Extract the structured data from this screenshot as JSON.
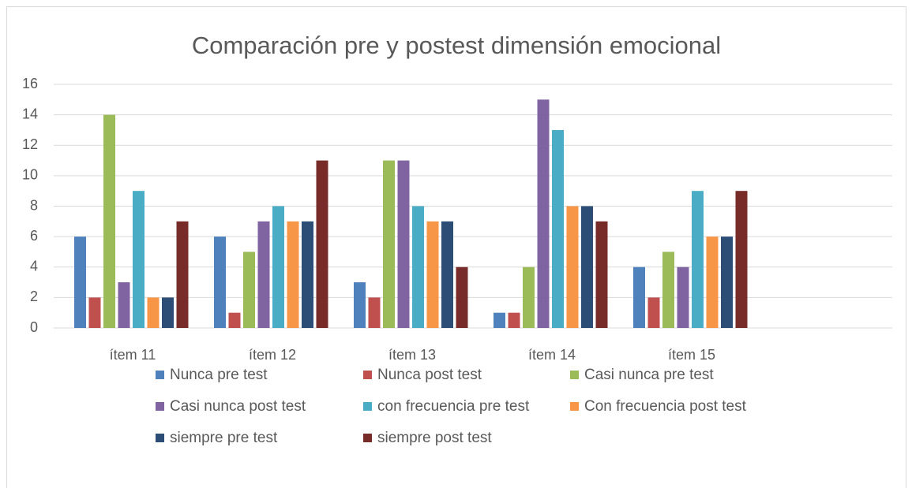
{
  "chart_data": {
    "type": "bar",
    "title": "Comparación pre y postest dimensión emocional",
    "categories": [
      "ítem 11",
      "ítem 12",
      "ítem 13",
      "ítem 14",
      "ítem 15",
      null
    ],
    "series": [
      {
        "name": "Nunca pre test",
        "color": "#4f81bd",
        "values": [
          6,
          6,
          3,
          1,
          4,
          null
        ]
      },
      {
        "name": "Nunca post test",
        "color": "#c0504d",
        "values": [
          2,
          1,
          2,
          1,
          2,
          null
        ]
      },
      {
        "name": "Casi nunca pre test",
        "color": "#9bbb59",
        "values": [
          14,
          5,
          11,
          4,
          5,
          null
        ]
      },
      {
        "name": "Casi nunca post test",
        "color": "#8064a2",
        "values": [
          3,
          7,
          11,
          15,
          4,
          null
        ]
      },
      {
        "name": "con frecuencia pre test",
        "color": "#4bacc6",
        "values": [
          9,
          8,
          8,
          13,
          9,
          null
        ]
      },
      {
        "name": "Con frecuencia post test",
        "color": "#f79646",
        "values": [
          2,
          7,
          7,
          8,
          6,
          null
        ]
      },
      {
        "name": "siempre pre test",
        "color": "#2c4d75",
        "values": [
          2,
          7,
          7,
          8,
          6,
          null
        ]
      },
      {
        "name": "siempre post test",
        "color": "#772c2a",
        "values": [
          7,
          11,
          4,
          7,
          9,
          null
        ]
      }
    ],
    "ylim": [
      0,
      16
    ],
    "yticks": [
      0,
      2,
      4,
      6,
      8,
      10,
      12,
      14,
      16
    ],
    "grid": true,
    "legend": "bottom"
  }
}
